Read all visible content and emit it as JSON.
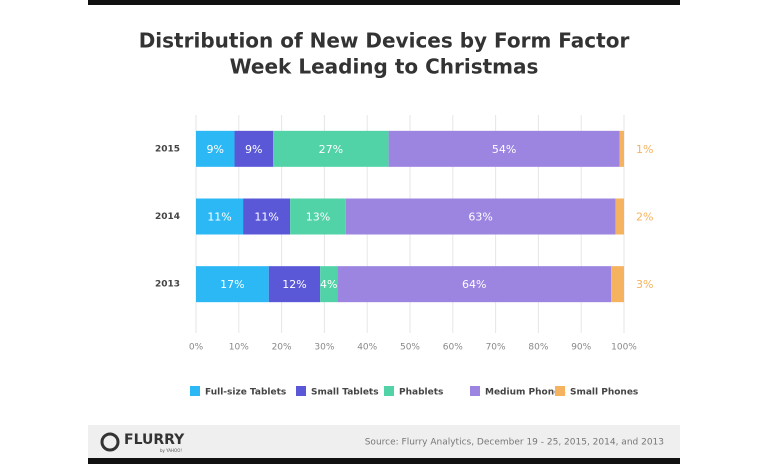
{
  "chart_data": {
    "type": "stacked-barh",
    "title": "Distribution of New Devices by Form Factor",
    "subtitle": "Week Leading to Christmas",
    "categories": [
      "2015",
      "2014",
      "2013"
    ],
    "series": [
      {
        "name": "Full-size Tablets",
        "color": "#2cb8f4",
        "values": [
          9,
          11,
          17
        ],
        "value_labels": [
          "9%",
          "11%",
          "17%"
        ]
      },
      {
        "name": "Small Tablets",
        "color": "#5b58d8",
        "values": [
          9,
          11,
          12
        ],
        "value_labels": [
          "9%",
          "11%",
          "12%"
        ]
      },
      {
        "name": "Phablets",
        "color": "#52d2a7",
        "values": [
          27,
          13,
          4
        ],
        "value_labels": [
          "27%",
          "13%",
          "4%"
        ]
      },
      {
        "name": "Medium Phones",
        "color": "#9c84e1",
        "values": [
          54,
          63,
          64
        ],
        "value_labels": [
          "54%",
          "63%",
          "64%"
        ]
      },
      {
        "name": "Small Phones",
        "color": "#f5b25f",
        "values": [
          1,
          2,
          3
        ],
        "value_labels": [
          "1%",
          "2%",
          "3%"
        ]
      }
    ],
    "xlim": [
      0,
      100
    ],
    "xticks": [
      {
        "value": 0,
        "label": "0%"
      },
      {
        "value": 10,
        "label": "10%"
      },
      {
        "value": 20,
        "label": "20%"
      },
      {
        "value": 30,
        "label": "30%"
      },
      {
        "value": 40,
        "label": "40%"
      },
      {
        "value": 50,
        "label": "50%"
      },
      {
        "value": 60,
        "label": "60%"
      },
      {
        "value": 70,
        "label": "70%"
      },
      {
        "value": 80,
        "label": "80%"
      },
      {
        "value": 90,
        "label": "90%"
      },
      {
        "value": 100,
        "label": "100%"
      }
    ],
    "grid": true
  },
  "footer": {
    "logo": "FLURRY",
    "logo_sub": "by YAHOO!",
    "source": "Source: Flurry Analytics, December 19 - 25, 2015, 2014, and 2013"
  }
}
